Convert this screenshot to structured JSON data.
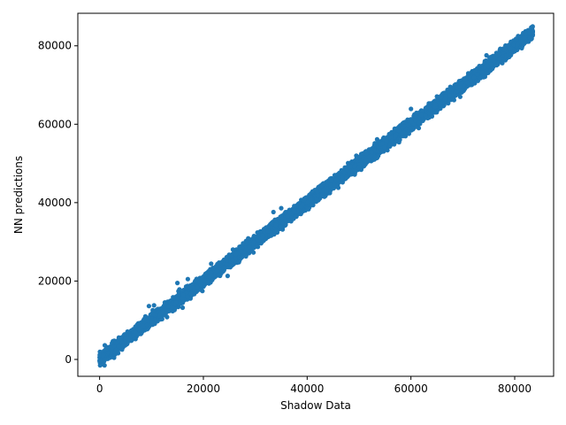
{
  "chart_data": {
    "type": "scatter",
    "title": "",
    "xlabel": "Shadow Data",
    "ylabel": "NN predictions",
    "xlim": [
      -4200,
      87500
    ],
    "ylim": [
      -4300,
      88300
    ],
    "xticks": [
      0,
      20000,
      40000,
      60000,
      80000
    ],
    "yticks": [
      0,
      20000,
      40000,
      60000,
      80000
    ],
    "grid": false,
    "legend": "none",
    "marker_color": "#1f77b4",
    "series": [
      {
        "x_range": [
          0,
          83500
        ],
        "trend": "y ≈ x",
        "spread": 700,
        "point_count": 9000,
        "outliers": [
          [
            1000,
            3600
          ],
          [
            9500,
            13600
          ],
          [
            10500,
            13800
          ],
          [
            15000,
            19500
          ],
          [
            16000,
            13200
          ],
          [
            17000,
            20500
          ],
          [
            21500,
            24400
          ],
          [
            33500,
            37600
          ],
          [
            35000,
            38600
          ],
          [
            57000,
            55500
          ],
          [
            60000,
            63900
          ],
          [
            61500,
            59000
          ],
          [
            69500,
            67000
          ],
          [
            28000,
            26500
          ],
          [
            46000,
            43800
          ],
          [
            74000,
            72000
          ]
        ]
      }
    ]
  }
}
